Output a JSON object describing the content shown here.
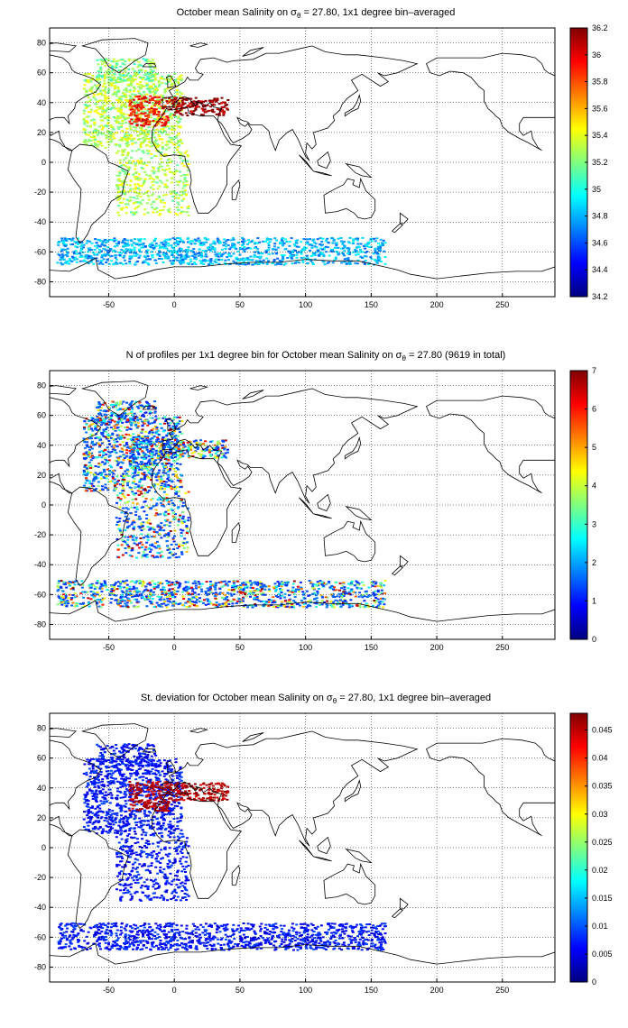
{
  "panels": [
    {
      "title_pre": "October mean Salinity on σ",
      "title_sub": "θ",
      "title_post": " = 27.80, 1x1 degree bin–averaged",
      "colorbar_ticks": [
        "34.2",
        "34.4",
        "34.6",
        "34.8",
        "35",
        "35.2",
        "35.4",
        "35.6",
        "35.8",
        "36",
        "36.2"
      ],
      "clim": [
        34.2,
        36.2
      ]
    },
    {
      "title_pre": "N of profiles per 1x1 degree bin for October mean Salinity on σ",
      "title_sub": "θ",
      "title_post": " = 27.80 (9619 in total)",
      "colorbar_ticks": [
        "0",
        "1",
        "2",
        "3",
        "4",
        "5",
        "6",
        "7"
      ],
      "clim": [
        0,
        7
      ]
    },
    {
      "title_pre": "St. deviation for October mean Salinity on σ",
      "title_sub": "θ",
      "title_post": " = 27.80, 1x1 degree bin–averaged",
      "colorbar_ticks": [
        "0",
        "0.005",
        "0.01",
        "0.015",
        "0.02",
        "0.025",
        "0.03",
        "0.035",
        "0.04",
        "0.045"
      ],
      "clim": [
        0,
        0.048
      ]
    }
  ],
  "map": {
    "lon_range": [
      -95,
      290
    ],
    "lat_range": [
      -90,
      90
    ],
    "lon_ticks": [
      "-50",
      "0",
      "50",
      "100",
      "150",
      "200",
      "250"
    ],
    "lat_ticks": [
      "80",
      "60",
      "40",
      "20",
      "0",
      "-20",
      "-40",
      "-60",
      "-80"
    ],
    "grid": "dotted",
    "colormap": "jet"
  }
}
